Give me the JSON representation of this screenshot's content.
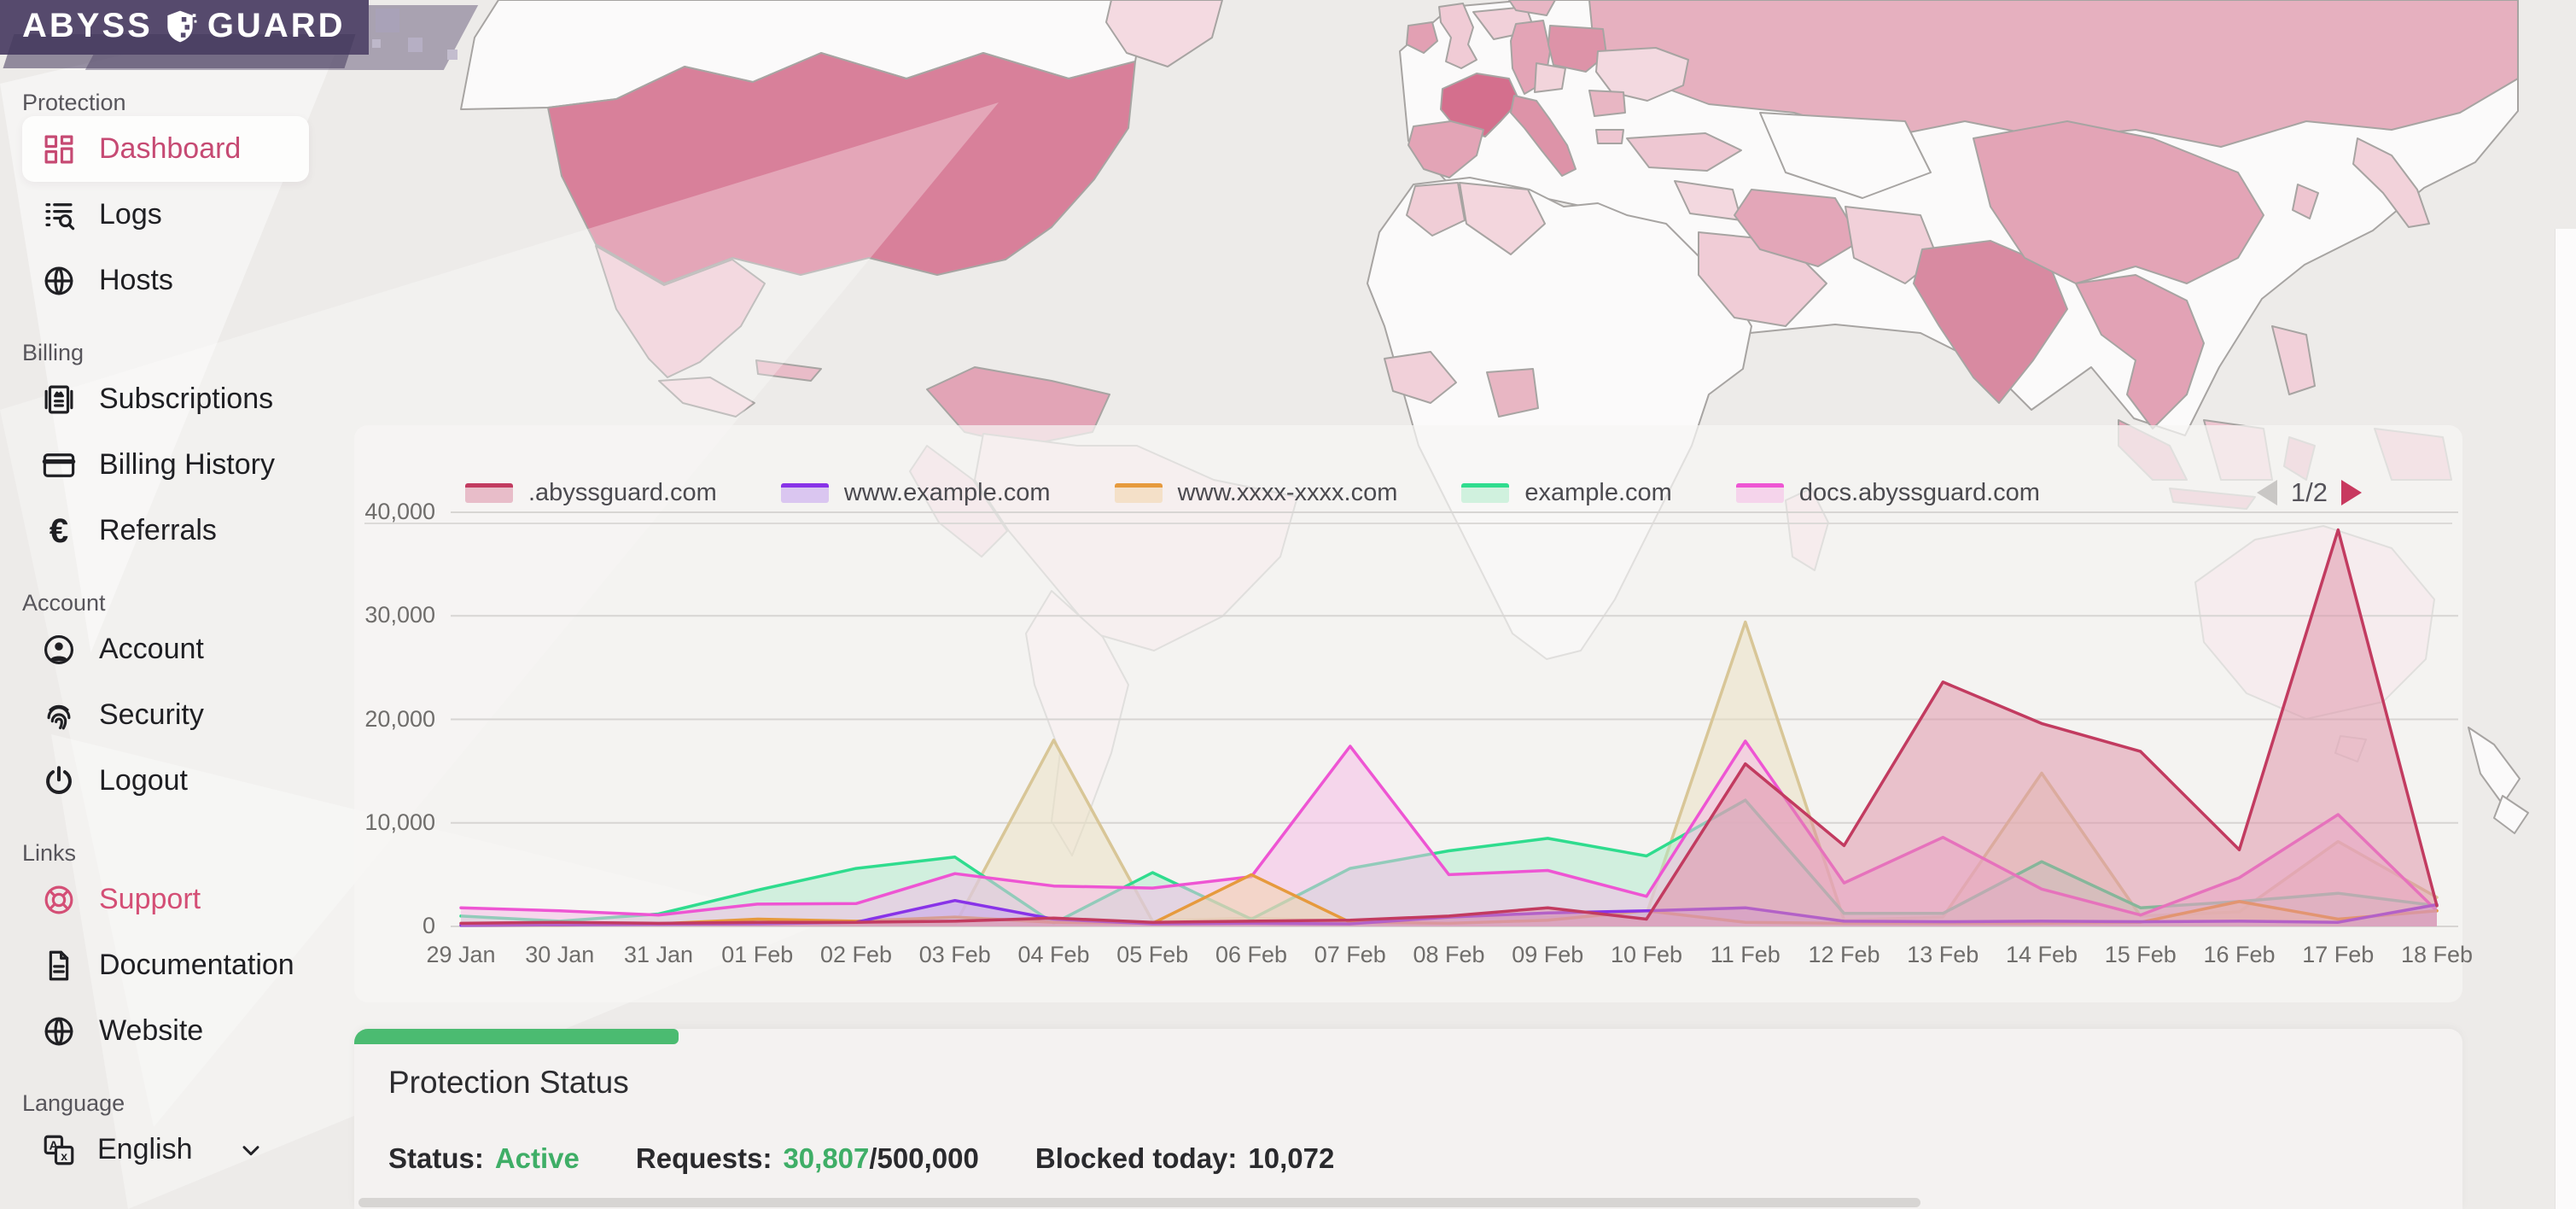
{
  "logo": {
    "brand_left": "ABYSS",
    "brand_right": "GUARD",
    "icon": "shield",
    "bg_color": "#564a6d"
  },
  "sidebar": {
    "accent_color": "#c64a73",
    "sections": [
      {
        "label": "Protection",
        "items": [
          {
            "label": "Dashboard",
            "icon": "dashboard",
            "active": true
          },
          {
            "label": "Logs",
            "icon": "logs"
          },
          {
            "label": "Hosts",
            "icon": "globe"
          }
        ]
      },
      {
        "label": "Billing",
        "items": [
          {
            "label": "Subscriptions",
            "icon": "receipt"
          },
          {
            "label": "Billing History",
            "icon": "credit-card"
          },
          {
            "label": "Referrals",
            "icon": "euro"
          }
        ]
      },
      {
        "label": "Account",
        "items": [
          {
            "label": "Account",
            "icon": "user"
          },
          {
            "label": "Security",
            "icon": "fingerprint"
          },
          {
            "label": "Logout",
            "icon": "power"
          }
        ]
      },
      {
        "label": "Links",
        "items": [
          {
            "label": "Support",
            "icon": "lifebuoy",
            "accent": true
          },
          {
            "label": "Documentation",
            "icon": "document"
          },
          {
            "label": "Website",
            "icon": "globe"
          }
        ]
      }
    ],
    "language": {
      "label": "Language",
      "selected": "English",
      "icon": "translate"
    }
  },
  "chart": {
    "legend_pagination": "1/2",
    "y_tick_labels": [
      "40,000",
      "30,000",
      "20,000",
      "10,000",
      "0"
    ]
  },
  "chart_data": {
    "type": "area",
    "x": [
      "29 Jan",
      "30 Jan",
      "31 Jan",
      "01 Feb",
      "02 Feb",
      "03 Feb",
      "04 Feb",
      "05 Feb",
      "06 Feb",
      "07 Feb",
      "08 Feb",
      "09 Feb",
      "10 Feb",
      "11 Feb",
      "12 Feb",
      "13 Feb",
      "14 Feb",
      "15 Feb",
      "16 Feb",
      "17 Feb",
      "18 Feb"
    ],
    "ylim": [
      0,
      40000
    ],
    "y_ticks": [
      0,
      10000,
      20000,
      30000,
      40000
    ],
    "grid": true,
    "legend_position": "top",
    "series": [
      {
        "name": ".abyssguard.com",
        "line": "#c23b60",
        "fill": "#dd8fa5",
        "values": [
          300,
          400,
          300,
          400,
          400,
          500,
          800,
          400,
          500,
          600,
          1000,
          1800,
          700,
          15700,
          7800,
          23600,
          19600,
          16900,
          7400,
          38300,
          2000
        ]
      },
      {
        "name": "www.example.com",
        "line": "#8833e8",
        "fill": "#c5a1ee",
        "values": [
          100,
          150,
          200,
          250,
          400,
          2500,
          700,
          250,
          300,
          250,
          900,
          1300,
          1500,
          1800,
          500,
          450,
          500,
          450,
          500,
          400,
          2100
        ]
      },
      {
        "name": "www.xxxx-xxxx.com",
        "line": "#e69a3d",
        "fill": "#f2d3a8",
        "values": [
          100,
          150,
          250,
          700,
          500,
          900,
          400,
          300,
          5000,
          400,
          300,
          600,
          1500,
          400,
          300,
          300,
          300,
          400,
          2400,
          700,
          1500
        ]
      },
      {
        "name": "example.com",
        "line": "#2fdc8e",
        "fill": "#aeeccb",
        "values": [
          1000,
          500,
          1200,
          3500,
          5600,
          6700,
          300,
          5200,
          700,
          5600,
          7300,
          8500,
          6800,
          12200,
          1250,
          1250,
          6250,
          1800,
          2400,
          3200,
          2000
        ]
      },
      {
        "name": "docs.abyssguard.com",
        "line": "#ee55d3",
        "fill": "#f6b9e6",
        "values": [
          1800,
          1500,
          1100,
          2150,
          2200,
          5100,
          3900,
          3700,
          4800,
          17400,
          5000,
          5400,
          2900,
          17900,
          4200,
          8600,
          3600,
          1100,
          4700,
          10800,
          1500
        ]
      },
      {
        "name": "",
        "line": "#d8c697",
        "fill": "#eae0c0",
        "values": [
          200,
          100,
          300,
          450,
          350,
          150,
          18000,
          500,
          800,
          500,
          800,
          900,
          1200,
          29400,
          600,
          900,
          14800,
          1000,
          1400,
          8200,
          2800
        ]
      }
    ]
  },
  "status_card": {
    "title": "Protection Status",
    "accent_color": "#4bbb71",
    "status_label": "Status:",
    "status_value": "Active",
    "requests_label": "Requests:",
    "requests_used": "30,807",
    "requests_total": "/500,000",
    "blocked_label": "Blocked today:",
    "blocked_value": "10,072"
  },
  "map": {
    "type": "choropleth",
    "palette": {
      "none": "#fbfafa",
      "low": "#f4dbe2",
      "mid_low": "#eec6d1",
      "mid": "#e3a4b6",
      "mid_high": "#d8809a",
      "high": "#d46f8d"
    },
    "regions": [
      {
        "name": "United States",
        "level": "mid_high"
      },
      {
        "name": "France",
        "level": "high"
      },
      {
        "name": "India",
        "level": "mid_high"
      },
      {
        "name": "Russia",
        "level": "mid"
      },
      {
        "name": "China",
        "level": "mid"
      },
      {
        "name": "Germany",
        "level": "mid"
      },
      {
        "name": "Poland",
        "level": "mid"
      },
      {
        "name": "Italy",
        "level": "mid"
      },
      {
        "name": "Spain",
        "level": "mid"
      },
      {
        "name": "Ireland",
        "level": "mid"
      },
      {
        "name": "Brazil",
        "level": "low"
      },
      {
        "name": "Australia",
        "level": "low"
      },
      {
        "name": "Ukraine",
        "level": "low"
      },
      {
        "name": "Turkey",
        "level": "mid_low"
      },
      {
        "name": "Indonesia",
        "level": "mid"
      },
      {
        "name": "Japan",
        "level": "low"
      },
      {
        "name": "Mexico",
        "level": "mid_low"
      },
      {
        "name": "Saudi Arabia",
        "level": "mid_low"
      },
      {
        "name": "Iran",
        "level": "mid"
      },
      {
        "name": "Nigeria",
        "level": "mid_low"
      },
      {
        "name": "Argentina",
        "level": "low"
      }
    ]
  }
}
